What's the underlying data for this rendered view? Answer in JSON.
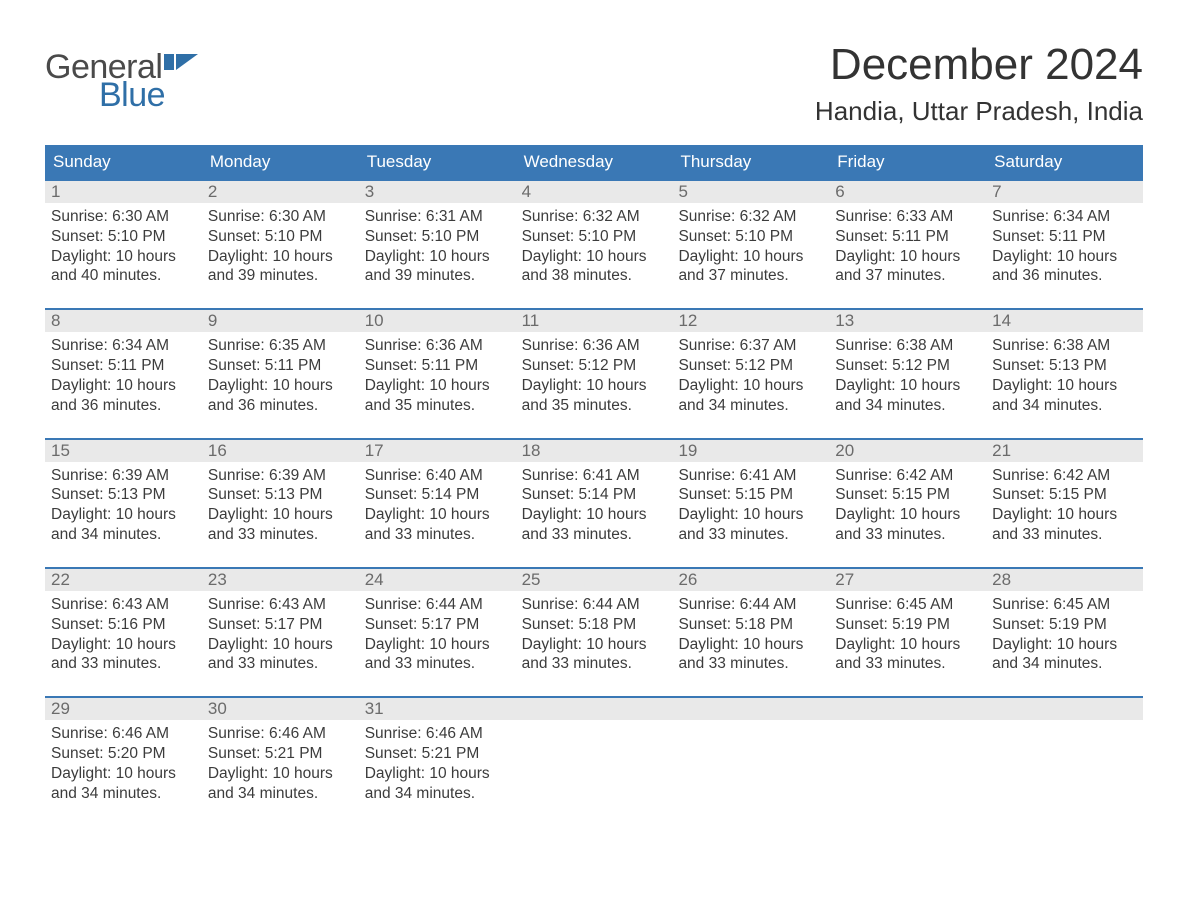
{
  "brand": {
    "word1": "General",
    "word2": "Blue",
    "flag_color": "#2f6fa7"
  },
  "header": {
    "month_title": "December 2024",
    "location": "Handia, Uttar Pradesh, India"
  },
  "colors": {
    "header_bg": "#3a78b5",
    "header_text": "#ffffff",
    "week_border": "#3a78b5",
    "daynum_bg": "#e9e9e9",
    "daynum_text": "#6b6b6b",
    "body_text": "#3c3c3c",
    "page_bg": "#ffffff"
  },
  "days_of_week": [
    "Sunday",
    "Monday",
    "Tuesday",
    "Wednesday",
    "Thursday",
    "Friday",
    "Saturday"
  ],
  "labels": {
    "sunrise": "Sunrise:",
    "sunset": "Sunset:",
    "daylight": "Daylight:"
  },
  "weeks": [
    [
      {
        "n": "1",
        "sunrise": "6:30 AM",
        "sunset": "5:10 PM",
        "daylight": "10 hours and 40 minutes."
      },
      {
        "n": "2",
        "sunrise": "6:30 AM",
        "sunset": "5:10 PM",
        "daylight": "10 hours and 39 minutes."
      },
      {
        "n": "3",
        "sunrise": "6:31 AM",
        "sunset": "5:10 PM",
        "daylight": "10 hours and 39 minutes."
      },
      {
        "n": "4",
        "sunrise": "6:32 AM",
        "sunset": "5:10 PM",
        "daylight": "10 hours and 38 minutes."
      },
      {
        "n": "5",
        "sunrise": "6:32 AM",
        "sunset": "5:10 PM",
        "daylight": "10 hours and 37 minutes."
      },
      {
        "n": "6",
        "sunrise": "6:33 AM",
        "sunset": "5:11 PM",
        "daylight": "10 hours and 37 minutes."
      },
      {
        "n": "7",
        "sunrise": "6:34 AM",
        "sunset": "5:11 PM",
        "daylight": "10 hours and 36 minutes."
      }
    ],
    [
      {
        "n": "8",
        "sunrise": "6:34 AM",
        "sunset": "5:11 PM",
        "daylight": "10 hours and 36 minutes."
      },
      {
        "n": "9",
        "sunrise": "6:35 AM",
        "sunset": "5:11 PM",
        "daylight": "10 hours and 36 minutes."
      },
      {
        "n": "10",
        "sunrise": "6:36 AM",
        "sunset": "5:11 PM",
        "daylight": "10 hours and 35 minutes."
      },
      {
        "n": "11",
        "sunrise": "6:36 AM",
        "sunset": "5:12 PM",
        "daylight": "10 hours and 35 minutes."
      },
      {
        "n": "12",
        "sunrise": "6:37 AM",
        "sunset": "5:12 PM",
        "daylight": "10 hours and 34 minutes."
      },
      {
        "n": "13",
        "sunrise": "6:38 AM",
        "sunset": "5:12 PM",
        "daylight": "10 hours and 34 minutes."
      },
      {
        "n": "14",
        "sunrise": "6:38 AM",
        "sunset": "5:13 PM",
        "daylight": "10 hours and 34 minutes."
      }
    ],
    [
      {
        "n": "15",
        "sunrise": "6:39 AM",
        "sunset": "5:13 PM",
        "daylight": "10 hours and 34 minutes."
      },
      {
        "n": "16",
        "sunrise": "6:39 AM",
        "sunset": "5:13 PM",
        "daylight": "10 hours and 33 minutes."
      },
      {
        "n": "17",
        "sunrise": "6:40 AM",
        "sunset": "5:14 PM",
        "daylight": "10 hours and 33 minutes."
      },
      {
        "n": "18",
        "sunrise": "6:41 AM",
        "sunset": "5:14 PM",
        "daylight": "10 hours and 33 minutes."
      },
      {
        "n": "19",
        "sunrise": "6:41 AM",
        "sunset": "5:15 PM",
        "daylight": "10 hours and 33 minutes."
      },
      {
        "n": "20",
        "sunrise": "6:42 AM",
        "sunset": "5:15 PM",
        "daylight": "10 hours and 33 minutes."
      },
      {
        "n": "21",
        "sunrise": "6:42 AM",
        "sunset": "5:15 PM",
        "daylight": "10 hours and 33 minutes."
      }
    ],
    [
      {
        "n": "22",
        "sunrise": "6:43 AM",
        "sunset": "5:16 PM",
        "daylight": "10 hours and 33 minutes."
      },
      {
        "n": "23",
        "sunrise": "6:43 AM",
        "sunset": "5:17 PM",
        "daylight": "10 hours and 33 minutes."
      },
      {
        "n": "24",
        "sunrise": "6:44 AM",
        "sunset": "5:17 PM",
        "daylight": "10 hours and 33 minutes."
      },
      {
        "n": "25",
        "sunrise": "6:44 AM",
        "sunset": "5:18 PM",
        "daylight": "10 hours and 33 minutes."
      },
      {
        "n": "26",
        "sunrise": "6:44 AM",
        "sunset": "5:18 PM",
        "daylight": "10 hours and 33 minutes."
      },
      {
        "n": "27",
        "sunrise": "6:45 AM",
        "sunset": "5:19 PM",
        "daylight": "10 hours and 33 minutes."
      },
      {
        "n": "28",
        "sunrise": "6:45 AM",
        "sunset": "5:19 PM",
        "daylight": "10 hours and 34 minutes."
      }
    ],
    [
      {
        "n": "29",
        "sunrise": "6:46 AM",
        "sunset": "5:20 PM",
        "daylight": "10 hours and 34 minutes."
      },
      {
        "n": "30",
        "sunrise": "6:46 AM",
        "sunset": "5:21 PM",
        "daylight": "10 hours and 34 minutes."
      },
      {
        "n": "31",
        "sunrise": "6:46 AM",
        "sunset": "5:21 PM",
        "daylight": "10 hours and 34 minutes."
      },
      null,
      null,
      null,
      null
    ]
  ]
}
